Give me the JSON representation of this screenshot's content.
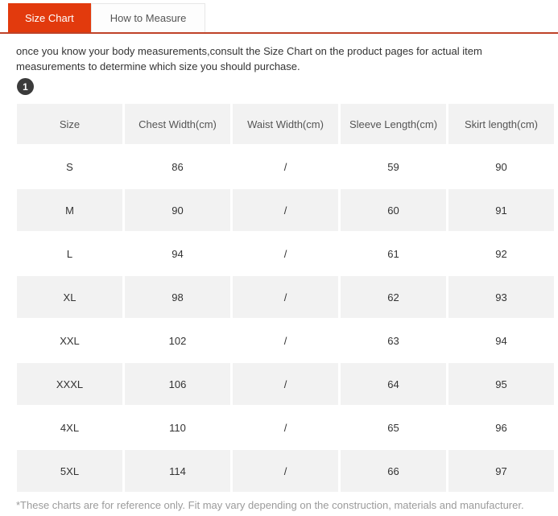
{
  "tabs": [
    {
      "label": "Size Chart",
      "active": true
    },
    {
      "label": "How to Measure",
      "active": false
    }
  ],
  "intro": "once you know your body measurements,consult the Size Chart on the product pages for actual item measurements to determine which size you should purchase.",
  "step_badge": "1",
  "table": {
    "headers": [
      "Size",
      "Chest Width(cm)",
      "Waist Width(cm)",
      "Sleeve Length(cm)",
      "Skirt length(cm)"
    ],
    "rows": [
      [
        "S",
        "86",
        "/",
        "59",
        "90"
      ],
      [
        "M",
        "90",
        "/",
        "60",
        "91"
      ],
      [
        "L",
        "94",
        "/",
        "61",
        "92"
      ],
      [
        "XL",
        "98",
        "/",
        "62",
        "93"
      ],
      [
        "XXL",
        "102",
        "/",
        "63",
        "94"
      ],
      [
        "XXXL",
        "106",
        "/",
        "64",
        "95"
      ],
      [
        "4XL",
        "110",
        "/",
        "65",
        "96"
      ],
      [
        "5XL",
        "114",
        "/",
        "66",
        "97"
      ]
    ]
  },
  "footnote": "*These charts are for reference only. Fit may vary depending on the construction, materials and manufacturer.",
  "colors": {
    "active_tab_bg": "#e23a0d",
    "active_tab_text": "#ffffff",
    "tab_underline": "#bf4228",
    "inactive_tab_text": "#555555",
    "row_alt_bg": "#f2f2f2",
    "badge_bg": "#3b3b3b",
    "footnote_text": "#9b9b9b"
  }
}
